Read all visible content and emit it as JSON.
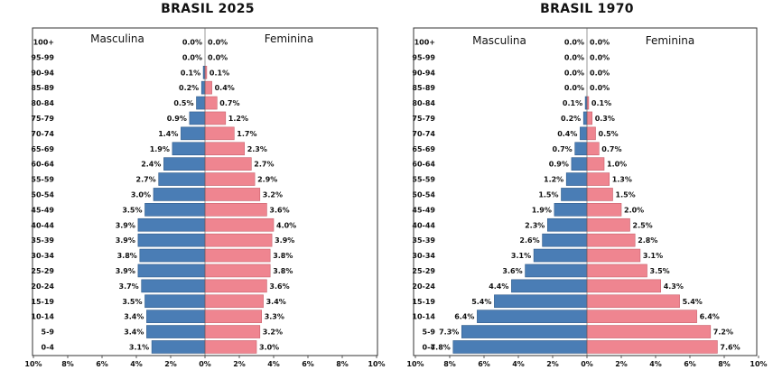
{
  "chart_data": [
    {
      "type": "bar",
      "title": "BRASIL 2025",
      "categories": [
        "100+",
        "95-99",
        "90-94",
        "85-89",
        "80-84",
        "75-79",
        "70-74",
        "65-69",
        "60-64",
        "55-59",
        "50-54",
        "45-49",
        "40-44",
        "35-39",
        "30-34",
        "25-29",
        "20-24",
        "15-19",
        "10-14",
        "5-9",
        "0-4"
      ],
      "series": [
        {
          "name": "Masculina",
          "values": [
            0.0,
            0.0,
            0.1,
            0.2,
            0.5,
            0.9,
            1.4,
            1.9,
            2.4,
            2.7,
            3.0,
            3.5,
            3.9,
            3.9,
            3.8,
            3.9,
            3.7,
            3.5,
            3.4,
            3.4,
            3.1
          ],
          "color": "#4a7db5"
        },
        {
          "name": "Feminina",
          "values": [
            0.0,
            0.0,
            0.1,
            0.4,
            0.7,
            1.2,
            1.7,
            2.3,
            2.7,
            2.9,
            3.2,
            3.6,
            4.0,
            3.9,
            3.8,
            3.8,
            3.6,
            3.4,
            3.3,
            3.2,
            3.0
          ],
          "color": "#ef8590"
        }
      ],
      "labels": {
        "Masculina": [
          "0.0%",
          "0.0%",
          "0.1%",
          "0.2%",
          "0.5%",
          "0.9%",
          "1.4%",
          "1.9%",
          "2.4%",
          "2.7%",
          "3.0%",
          "3.5%",
          "3.9%",
          "3.9%",
          "3.8%",
          "3.9%",
          "3.7%",
          "3.5%",
          "3.4%",
          "3.4%",
          "3.1%"
        ],
        "Feminina": [
          "0.0%",
          "0.0%",
          "0.1%",
          "0.4%",
          "0.7%",
          "1.2%",
          "1.7%",
          "2.3%",
          "2.7%",
          "2.9%",
          "3.2%",
          "3.6%",
          "4.0%",
          "3.9%",
          "3.8%",
          "3.8%",
          "3.6%",
          "3.4%",
          "3.3%",
          "3.2%",
          "3.0%"
        ]
      },
      "x_ticks": [
        "10%",
        "8%",
        "6%",
        "4%",
        "2%",
        "0%",
        "2%",
        "4%",
        "6%",
        "8%",
        "10%"
      ],
      "xlim": [
        -10,
        10
      ]
    },
    {
      "type": "bar",
      "title": "BRASIL 1970",
      "categories": [
        "100+",
        "95-99",
        "90-94",
        "85-89",
        "80-84",
        "75-79",
        "70-74",
        "65-69",
        "60-64",
        "55-59",
        "50-54",
        "45-49",
        "40-44",
        "35-39",
        "30-34",
        "25-29",
        "20-24",
        "15-19",
        "10-14",
        "5-9",
        "0-4"
      ],
      "series": [
        {
          "name": "Masculina",
          "values": [
            0.0,
            0.0,
            0.0,
            0.0,
            0.1,
            0.2,
            0.4,
            0.7,
            0.9,
            1.2,
            1.5,
            1.9,
            2.3,
            2.6,
            3.1,
            3.6,
            4.4,
            5.4,
            6.4,
            7.3,
            7.8
          ],
          "color": "#4a7db5"
        },
        {
          "name": "Feminina",
          "values": [
            0.0,
            0.0,
            0.0,
            0.0,
            0.1,
            0.3,
            0.5,
            0.7,
            1.0,
            1.3,
            1.5,
            2.0,
            2.5,
            2.8,
            3.1,
            3.5,
            4.3,
            5.4,
            6.4,
            7.2,
            7.6
          ],
          "color": "#ef8590"
        }
      ],
      "labels": {
        "Masculina": [
          "0.0%",
          "0.0%",
          "0.0%",
          "0.0%",
          "0.1%",
          "0.2%",
          "0.4%",
          "0.7%",
          "0.9%",
          "1.2%",
          "1.5%",
          "1.9%",
          "2.3%",
          "2.6%",
          "3.1%",
          "3.6%",
          "4.4%",
          "5.4%",
          "6.4%",
          "7.3%",
          "7.8%"
        ],
        "Feminina": [
          "0.0%",
          "0.0%",
          "0.0%",
          "0.0%",
          "0.1%",
          "0.3%",
          "0.5%",
          "0.7%",
          "1.0%",
          "1.3%",
          "1.5%",
          "2.0%",
          "2.5%",
          "2.8%",
          "3.1%",
          "3.5%",
          "4.3%",
          "5.4%",
          "6.4%",
          "7.2%",
          "7.6%"
        ]
      },
      "x_ticks": [
        "10%",
        "8%",
        "6%",
        "4%",
        "2%",
        "0%",
        "2%",
        "4%",
        "6%",
        "8%",
        "10%"
      ],
      "xlim": [
        -10,
        10
      ]
    }
  ]
}
